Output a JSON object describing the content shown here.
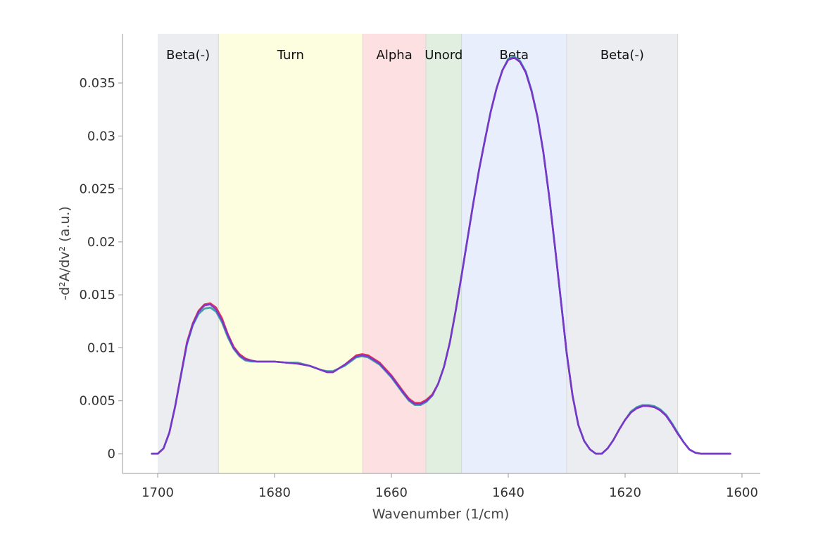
{
  "chart_data": {
    "type": "line",
    "xlabel": "Wavenumber (1/cm)",
    "ylabel": "-d²A/dv² (a.u.)",
    "xlim": [
      1706,
      1597
    ],
    "ylim": [
      -0.0018,
      0.0398
    ],
    "x_reversed": true,
    "grid": false,
    "legend": "none",
    "x_ticks": [
      1700,
      1680,
      1660,
      1640,
      1620,
      1600
    ],
    "x_tick_labels": [
      "1700",
      "1680",
      "1660",
      "1640",
      "1620",
      "1600"
    ],
    "y_ticks": [
      0,
      0.005,
      0.01,
      0.015,
      0.02,
      0.025,
      0.03,
      0.035
    ],
    "y_tick_labels": [
      "0",
      "0.005",
      "0.01",
      "0.015",
      "0.02",
      "0.025",
      "0.03",
      "0.035"
    ],
    "regions": [
      {
        "label": "Beta(-)",
        "from": 1700,
        "to": 1689.6,
        "color": "#ecedf1"
      },
      {
        "label": "Turn",
        "from": 1689.6,
        "to": 1664.9,
        "color": "#fdfde0"
      },
      {
        "label": "Alpha",
        "from": 1664.9,
        "to": 1654.1,
        "color": "#fde0e1"
      },
      {
        "label": "Unord",
        "from": 1654.1,
        "to": 1648.0,
        "color": "#e1efe1"
      },
      {
        "label": "Beta",
        "from": 1648.0,
        "to": 1630.0,
        "color": "#e8eefb"
      },
      {
        "label": "Beta(-)",
        "from": 1630.0,
        "to": 1611.0,
        "color": "#ecedf1"
      }
    ],
    "x": [
      1701,
      1700,
      1699,
      1698,
      1697,
      1696,
      1695,
      1694,
      1693,
      1692,
      1691,
      1690,
      1689,
      1688,
      1687,
      1686,
      1685,
      1684,
      1683,
      1682,
      1681,
      1680,
      1678,
      1676,
      1674,
      1672,
      1671,
      1670,
      1668,
      1666,
      1665,
      1664,
      1662,
      1660,
      1658,
      1657,
      1656,
      1655,
      1654,
      1653,
      1652,
      1651,
      1650,
      1649,
      1648,
      1647,
      1646,
      1645,
      1644,
      1643,
      1642,
      1641,
      1640,
      1639,
      1638,
      1637,
      1636,
      1635,
      1634,
      1633,
      1632,
      1631,
      1630,
      1629,
      1628,
      1627,
      1626,
      1625,
      1624,
      1623,
      1622,
      1621,
      1620,
      1619,
      1618,
      1617,
      1616,
      1615,
      1614,
      1613,
      1612,
      1611,
      1610,
      1609,
      1608,
      1607,
      1606,
      1605,
      1604,
      1602
    ],
    "series": [
      {
        "color": "#e8213a",
        "values": [
          0,
          0,
          0.0005,
          0.002,
          0.0045,
          0.0075,
          0.0105,
          0.0123,
          0.0135,
          0.0141,
          0.0142,
          0.0138,
          0.0128,
          0.0113,
          0.0101,
          0.0094,
          0.009,
          0.0088,
          0.0087,
          0.0087,
          0.0087,
          0.0087,
          0.0086,
          0.0085,
          0.0083,
          0.0079,
          0.0077,
          0.0077,
          0.0084,
          0.0093,
          0.0094,
          0.0093,
          0.0086,
          0.0074,
          0.0059,
          0.0052,
          0.0048,
          0.0048,
          0.0051,
          0.0056,
          0.0066,
          0.0082,
          0.0105,
          0.0135,
          0.0168,
          0.0202,
          0.0236,
          0.0268,
          0.0296,
          0.0323,
          0.0345,
          0.0362,
          0.0372,
          0.0374,
          0.037,
          0.036,
          0.0342,
          0.0318,
          0.0285,
          0.0243,
          0.0195,
          0.0145,
          0.0095,
          0.0055,
          0.0027,
          0.0012,
          0.0004,
          0,
          0,
          0.0005,
          0.0013,
          0.0023,
          0.0032,
          0.0039,
          0.0043,
          0.0045,
          0.0045,
          0.0044,
          0.0041,
          0.0036,
          0.0028,
          0.0019,
          0.0011,
          0.0004,
          0.0001,
          0,
          0,
          0,
          0,
          0
        ]
      },
      {
        "color": "#2d9a9a",
        "values": [
          0,
          0,
          0.0005,
          0.002,
          0.0045,
          0.0074,
          0.0103,
          0.0121,
          0.0132,
          0.0137,
          0.0138,
          0.0134,
          0.0124,
          0.011,
          0.0099,
          0.0092,
          0.0088,
          0.0087,
          0.0087,
          0.0087,
          0.0087,
          0.0087,
          0.0086,
          0.0086,
          0.0083,
          0.0079,
          0.0078,
          0.0078,
          0.0083,
          0.0091,
          0.0092,
          0.0091,
          0.0084,
          0.0072,
          0.0057,
          0.005,
          0.0046,
          0.0046,
          0.0049,
          0.0055,
          0.0066,
          0.0082,
          0.0105,
          0.0135,
          0.0168,
          0.0202,
          0.0236,
          0.0268,
          0.0296,
          0.0323,
          0.0345,
          0.0362,
          0.0373,
          0.0375,
          0.0371,
          0.0361,
          0.0343,
          0.0318,
          0.0285,
          0.0243,
          0.0195,
          0.0145,
          0.0095,
          0.0055,
          0.0027,
          0.0012,
          0.0004,
          0,
          0,
          0.0005,
          0.0013,
          0.0023,
          0.0032,
          0.004,
          0.0044,
          0.0046,
          0.0046,
          0.0045,
          0.0042,
          0.0037,
          0.0029,
          0.002,
          0.0011,
          0.0004,
          0.0001,
          0,
          0,
          0,
          0,
          0
        ]
      },
      {
        "color": "#7b2fd4",
        "values": [
          0,
          0,
          0.0005,
          0.002,
          0.0045,
          0.0075,
          0.0104,
          0.0122,
          0.0134,
          0.014,
          0.0141,
          0.0136,
          0.0126,
          0.0112,
          0.01,
          0.0093,
          0.0089,
          0.0088,
          0.0087,
          0.0087,
          0.0087,
          0.0087,
          0.0086,
          0.0085,
          0.0083,
          0.0079,
          0.0077,
          0.0077,
          0.0084,
          0.0092,
          0.0093,
          0.0092,
          0.0085,
          0.0073,
          0.0058,
          0.0051,
          0.0047,
          0.0047,
          0.005,
          0.0055,
          0.0066,
          0.0082,
          0.0105,
          0.0135,
          0.0168,
          0.0202,
          0.0236,
          0.0268,
          0.0296,
          0.0323,
          0.0345,
          0.0362,
          0.0372,
          0.0374,
          0.037,
          0.036,
          0.0342,
          0.0318,
          0.0285,
          0.0243,
          0.0195,
          0.0145,
          0.0095,
          0.0055,
          0.0027,
          0.0012,
          0.0004,
          0,
          0,
          0.0005,
          0.0013,
          0.0023,
          0.0032,
          0.0039,
          0.0043,
          0.0045,
          0.0045,
          0.0044,
          0.0041,
          0.0036,
          0.0028,
          0.0019,
          0.0011,
          0.0004,
          0.0001,
          0,
          0,
          0,
          0,
          0
        ]
      }
    ]
  }
}
